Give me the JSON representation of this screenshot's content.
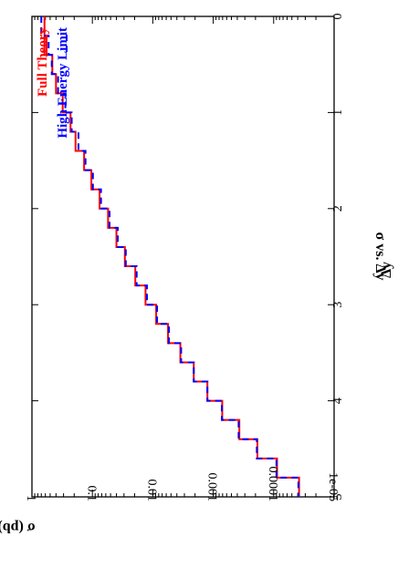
{
  "chart_data": {
    "type": "line",
    "orientation": "rotated-90",
    "title": "σ vs. Δy",
    "xlabel": "Δy",
    "ylabel": "σ (pb)",
    "xlim": [
      0,
      5
    ],
    "ylim": [
      1e-05,
      1
    ],
    "yscale": "log",
    "grid": false,
    "legend_position": "top-left",
    "x_ticks": [
      {
        "value": 0,
        "label": "0"
      },
      {
        "value": 1,
        "label": "1"
      },
      {
        "value": 2,
        "label": "2"
      },
      {
        "value": 3,
        "label": "3"
      },
      {
        "value": 4,
        "label": "4"
      },
      {
        "value": 5,
        "label": "5"
      }
    ],
    "y_ticks": [
      {
        "value": 1,
        "label": "1"
      },
      {
        "value": 0.1,
        "label": "0.1"
      },
      {
        "value": 0.01,
        "label": "0.01"
      },
      {
        "value": 0.001,
        "label": "0.001"
      },
      {
        "value": 0.0001,
        "label": "0.0001"
      },
      {
        "value": 1e-05,
        "label": "1e-05"
      }
    ],
    "bin_edges": [
      0,
      0.2,
      0.4,
      0.6,
      0.8,
      1.0,
      1.2,
      1.4,
      1.6,
      1.8,
      2.0,
      2.2,
      2.4,
      2.6,
      2.8,
      3.0,
      3.2,
      3.4,
      3.6,
      3.8,
      4.0,
      4.2,
      4.4,
      4.6,
      4.8,
      5.0
    ],
    "series": [
      {
        "name": "Full Theory",
        "color": "#ff0000",
        "dash": "solid",
        "values": [
          0.62,
          0.62,
          0.46,
          0.4,
          0.31,
          0.23,
          0.19,
          0.137,
          0.104,
          0.076,
          0.055,
          0.04,
          0.029,
          0.0195,
          0.0132,
          0.0088,
          0.0056,
          0.0035,
          0.0021,
          0.00125,
          0.00071,
          0.00037,
          0.000186,
          8.8e-05,
          3.8e-05
        ]
      },
      {
        "name": "High Energy Limit",
        "color": "#0000ff",
        "dash": "dashed",
        "values": [
          0.7,
          0.53,
          0.47,
          0.37,
          0.28,
          0.22,
          0.17,
          0.13,
          0.098,
          0.072,
          0.052,
          0.038,
          0.028,
          0.0185,
          0.0125,
          0.0085,
          0.0054,
          0.0034,
          0.0021,
          0.00125,
          0.00072,
          0.00038,
          0.00019,
          9e-05,
          3.9e-05
        ]
      }
    ]
  }
}
